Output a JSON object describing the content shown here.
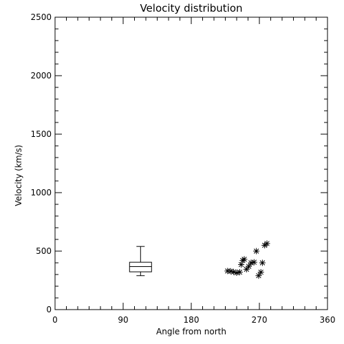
{
  "chart_data": {
    "type": "scatter",
    "title": "Velocity distribution",
    "xlabel": "Angle from north",
    "ylabel": "Velocity (km/s)",
    "xlim": [
      0,
      360
    ],
    "ylim": [
      0,
      2500
    ],
    "x_ticks": [
      0,
      90,
      180,
      270,
      360
    ],
    "x_tick_labels": [
      "0",
      "90",
      "180",
      "270",
      "360"
    ],
    "y_ticks": [
      0,
      500,
      1000,
      1500,
      2000,
      2500
    ],
    "y_tick_labels": [
      "0",
      "500",
      "1000",
      "1500",
      "2000",
      "2500"
    ],
    "x_minor_step": 15,
    "y_minor_step": 100,
    "grid": false,
    "box": {
      "x": 113,
      "whisker_low": 290,
      "q1": 323,
      "median": 368,
      "q3": 405,
      "whisker_high": 540
    },
    "points": [
      {
        "x": 228,
        "y": 330
      },
      {
        "x": 232,
        "y": 328
      },
      {
        "x": 236,
        "y": 322
      },
      {
        "x": 240,
        "y": 315
      },
      {
        "x": 244,
        "y": 320
      },
      {
        "x": 246,
        "y": 385
      },
      {
        "x": 248,
        "y": 420
      },
      {
        "x": 250,
        "y": 430
      },
      {
        "x": 253,
        "y": 345
      },
      {
        "x": 256,
        "y": 370
      },
      {
        "x": 259,
        "y": 400
      },
      {
        "x": 263,
        "y": 405
      },
      {
        "x": 266,
        "y": 500
      },
      {
        "x": 269,
        "y": 290
      },
      {
        "x": 272,
        "y": 320
      },
      {
        "x": 274,
        "y": 400
      },
      {
        "x": 277,
        "y": 550
      },
      {
        "x": 280,
        "y": 565
      }
    ]
  }
}
